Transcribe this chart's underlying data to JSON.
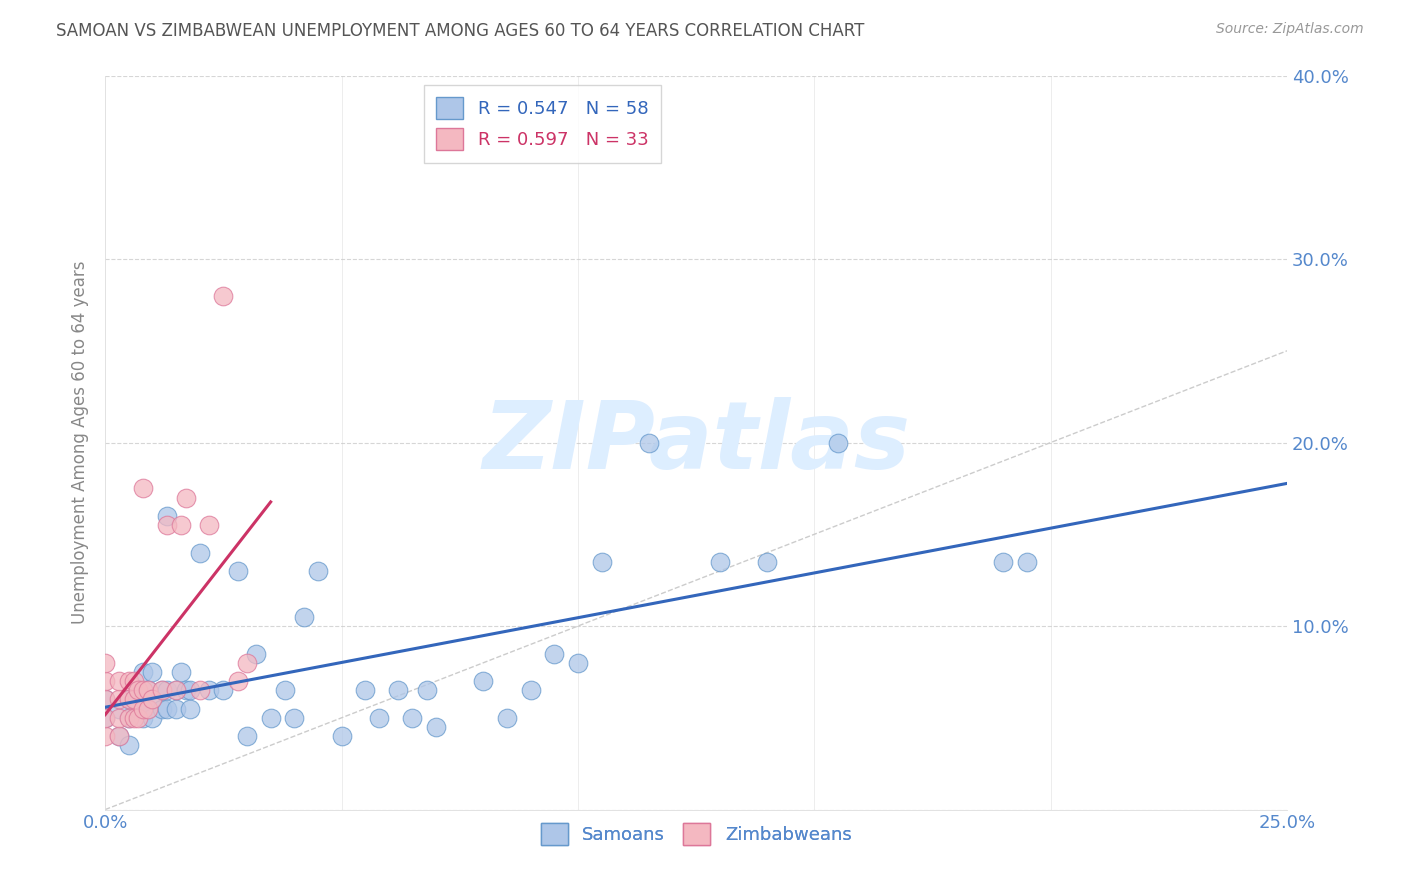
{
  "title": "SAMOAN VS ZIMBABWEAN UNEMPLOYMENT AMONG AGES 60 TO 64 YEARS CORRELATION CHART",
  "source": "Source: ZipAtlas.com",
  "ylabel": "Unemployment Among Ages 60 to 64 years",
  "xlim": [
    0.0,
    0.25
  ],
  "ylim": [
    0.0,
    0.4
  ],
  "xticks": [
    0.0,
    0.05,
    0.1,
    0.15,
    0.2,
    0.25
  ],
  "yticks": [
    0.0,
    0.1,
    0.2,
    0.3,
    0.4
  ],
  "legend_items": [
    {
      "color": "#aec6e8",
      "label": "R = 0.547   N = 58"
    },
    {
      "color": "#f4b8c1",
      "label": "R = 0.597   N = 33"
    }
  ],
  "samoans_x": [
    0.0,
    0.0,
    0.003,
    0.003,
    0.005,
    0.005,
    0.005,
    0.007,
    0.007,
    0.008,
    0.008,
    0.008,
    0.009,
    0.009,
    0.01,
    0.01,
    0.01,
    0.012,
    0.012,
    0.013,
    0.013,
    0.013,
    0.015,
    0.015,
    0.016,
    0.017,
    0.018,
    0.018,
    0.02,
    0.022,
    0.025,
    0.028,
    0.03,
    0.032,
    0.035,
    0.038,
    0.04,
    0.042,
    0.045,
    0.05,
    0.055,
    0.058,
    0.062,
    0.065,
    0.068,
    0.07,
    0.08,
    0.085,
    0.09,
    0.095,
    0.1,
    0.105,
    0.115,
    0.13,
    0.14,
    0.155,
    0.19,
    0.195
  ],
  "samoans_y": [
    0.05,
    0.06,
    0.04,
    0.055,
    0.035,
    0.05,
    0.06,
    0.055,
    0.065,
    0.05,
    0.06,
    0.075,
    0.055,
    0.065,
    0.05,
    0.06,
    0.075,
    0.055,
    0.065,
    0.055,
    0.065,
    0.16,
    0.055,
    0.065,
    0.075,
    0.065,
    0.055,
    0.065,
    0.14,
    0.065,
    0.065,
    0.13,
    0.04,
    0.085,
    0.05,
    0.065,
    0.05,
    0.105,
    0.13,
    0.04,
    0.065,
    0.05,
    0.065,
    0.05,
    0.065,
    0.045,
    0.07,
    0.05,
    0.065,
    0.085,
    0.08,
    0.135,
    0.2,
    0.135,
    0.135,
    0.2,
    0.135,
    0.135
  ],
  "zimbabweans_x": [
    0.0,
    0.0,
    0.0,
    0.0,
    0.0,
    0.003,
    0.003,
    0.003,
    0.003,
    0.005,
    0.005,
    0.005,
    0.006,
    0.006,
    0.006,
    0.007,
    0.007,
    0.008,
    0.008,
    0.008,
    0.009,
    0.009,
    0.01,
    0.012,
    0.013,
    0.015,
    0.016,
    0.017,
    0.02,
    0.022,
    0.025,
    0.028,
    0.03
  ],
  "zimbabweans_y": [
    0.04,
    0.05,
    0.06,
    0.07,
    0.08,
    0.04,
    0.05,
    0.06,
    0.07,
    0.05,
    0.06,
    0.07,
    0.05,
    0.06,
    0.07,
    0.05,
    0.065,
    0.055,
    0.065,
    0.175,
    0.055,
    0.065,
    0.06,
    0.065,
    0.155,
    0.065,
    0.155,
    0.17,
    0.065,
    0.155,
    0.28,
    0.07,
    0.08
  ],
  "samoan_color": "#aec6e8",
  "samoan_edge_color": "#6699cc",
  "zimbabwean_color": "#f4b8c1",
  "zimbabwean_edge_color": "#dd7799",
  "samoan_trend_color": "#3366bb",
  "zimbabwean_trend_color": "#cc3366",
  "diagonal_color": "#cccccc",
  "background_color": "#ffffff",
  "grid_color": "#cccccc",
  "title_color": "#555555",
  "watermark_color": "#ddeeff",
  "label_color": "#5588cc"
}
